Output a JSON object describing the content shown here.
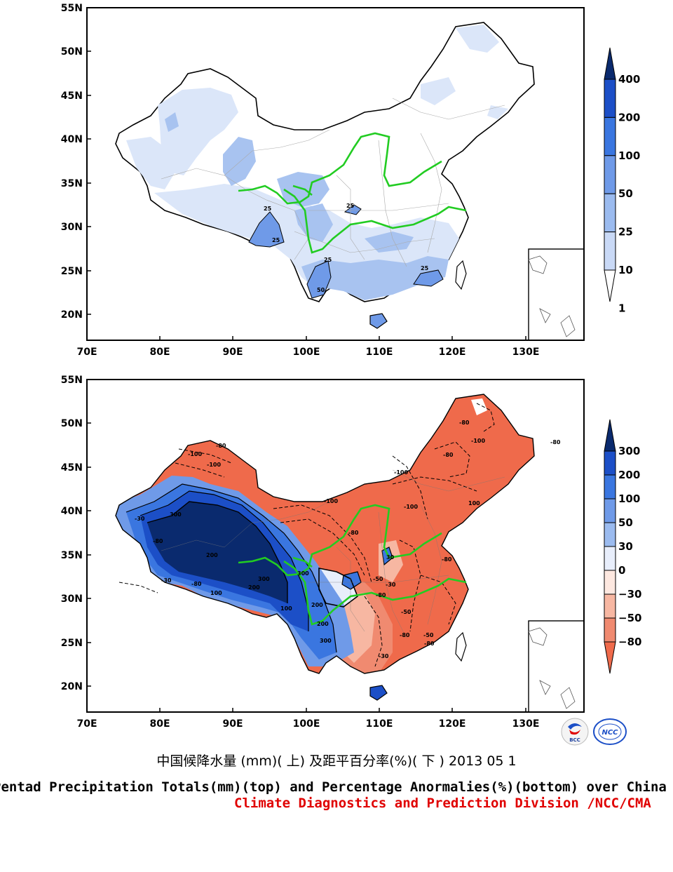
{
  "axes": {
    "lat_labels": [
      "55N",
      "50N",
      "45N",
      "40N",
      "35N",
      "30N",
      "25N",
      "20N"
    ],
    "lon_labels": [
      "70E",
      "80E",
      "90E",
      "100E",
      "110E",
      "120E",
      "130E"
    ]
  },
  "top_panel": {
    "colorbar": {
      "labels": [
        "400",
        "200",
        "100",
        "50",
        "25",
        "10",
        "1"
      ],
      "colors": [
        "#0a2a6e",
        "#1c4fc7",
        "#3a76e0",
        "#6f9ae8",
        "#9bbbef",
        "#c9d9f6",
        "#ffffff"
      ]
    },
    "contour_labels": [
      "25",
      "25",
      "25",
      "50",
      "25",
      "25"
    ]
  },
  "bottom_panel": {
    "colorbar": {
      "labels": [
        "300",
        "200",
        "100",
        "50",
        "30",
        "0",
        "−30",
        "−50",
        "−80"
      ],
      "colors": [
        "#0a2a6e",
        "#1c4fc7",
        "#3a76e0",
        "#6f9ae8",
        "#9bbbef",
        "#e8eefb",
        "#fde8e0",
        "#f7b7a2",
        "#f08a70",
        "#ef6a4b"
      ]
    },
    "contour_labels": [
      "-100",
      "-80",
      "-100",
      "-100",
      "-80",
      "-100",
      "-80",
      "-100",
      "-100",
      "100",
      "300",
      "200",
      "300",
      "200",
      "300",
      "200",
      "100",
      "-30",
      "-80",
      "-50",
      "-80",
      "-30",
      "-80",
      "30",
      "-50",
      "-80",
      "-80",
      "-80",
      "-30",
      "-50",
      "300",
      "200",
      "100",
      "-30",
      "-80",
      "-80"
    ]
  },
  "captions": {
    "title_cn": "中国候降水量 (mm)( 上) 及距平百分率(%)( 下 ) 2013 05 1",
    "title_en": "Pentad Precipitation Totals(mm)(top) and Percentage Anormalies(%)(bottom) over China",
    "credit": "Climate Diagnostics and Prediction Division /NCC/CMA",
    "credit_color": "#e00000"
  },
  "logos": {
    "left": "BCC",
    "right": "NCC"
  },
  "river_color": "#22cc22"
}
